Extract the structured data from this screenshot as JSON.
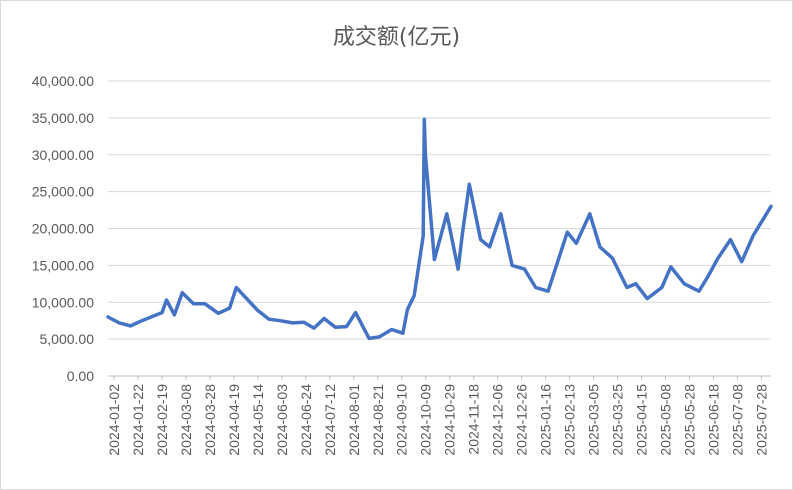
{
  "chart_data": {
    "type": "line",
    "title": "成交额(亿元)",
    "xlabel": "",
    "ylabel": "",
    "ylim": [
      0,
      40000
    ],
    "yticks": [
      "0.00",
      "5,000.00",
      "10,000.00",
      "15,000.00",
      "20,000.00",
      "25,000.00",
      "30,000.00",
      "35,000.00",
      "40,000.00"
    ],
    "ytick_values": [
      0,
      5000,
      10000,
      15000,
      20000,
      25000,
      30000,
      35000,
      40000
    ],
    "grid": true,
    "legend": "none",
    "color": "#4472c4",
    "xtick_labels": [
      "2024-01-02",
      "2024-01-22",
      "2024-02-19",
      "2024-03-08",
      "2024-03-28",
      "2024-04-19",
      "2024-05-14",
      "2024-06-03",
      "2024-06-24",
      "2024-07-12",
      "2024-08-01",
      "2024-08-21",
      "2024-09-10",
      "2024-10-09",
      "2024-10-29",
      "2024-11-18",
      "2024-12-06",
      "2024-12-26",
      "2025-01-16",
      "2025-02-13",
      "2025-03-05",
      "2025-03-25",
      "2025-04-15",
      "2025-05-08",
      "2025-05-28",
      "2025-06-18",
      "2025-07-08",
      "2025-07-28"
    ],
    "x": [
      "2024-01-02",
      "2024-01-12",
      "2024-01-22",
      "2024-02-01",
      "2024-02-19",
      "2024-02-23",
      "2024-03-01",
      "2024-03-08",
      "2024-03-18",
      "2024-03-28",
      "2024-04-09",
      "2024-04-19",
      "2024-04-25",
      "2024-05-14",
      "2024-05-24",
      "2024-06-03",
      "2024-06-14",
      "2024-06-24",
      "2024-07-03",
      "2024-07-12",
      "2024-07-22",
      "2024-08-01",
      "2024-08-09",
      "2024-08-21",
      "2024-08-30",
      "2024-09-10",
      "2024-09-20",
      "2024-09-24",
      "2024-09-30",
      "2024-10-08",
      "2024-10-09",
      "2024-10-10",
      "2024-10-18",
      "2024-10-29",
      "2024-11-08",
      "2024-11-12",
      "2024-11-18",
      "2024-11-28",
      "2024-12-06",
      "2024-12-16",
      "2024-12-26",
      "2025-01-06",
      "2025-01-16",
      "2025-01-27",
      "2025-02-13",
      "2025-02-21",
      "2025-03-05",
      "2025-03-14",
      "2025-03-25",
      "2025-04-07",
      "2025-04-15",
      "2025-04-25",
      "2025-05-08",
      "2025-05-16",
      "2025-05-28",
      "2025-06-10",
      "2025-06-18",
      "2025-06-27",
      "2025-07-08",
      "2025-07-18",
      "2025-07-28",
      "2025-08-13"
    ],
    "values": [
      8000,
      7200,
      6800,
      7500,
      8600,
      10300,
      8300,
      11300,
      9800,
      9800,
      8500,
      9200,
      12000,
      8900,
      7700,
      7500,
      7200,
      7300,
      6500,
      7800,
      6600,
      6700,
      8600,
      5100,
      5300,
      6300,
      5800,
      9000,
      10900,
      19000,
      34800,
      30000,
      15800,
      22000,
      14500,
      19500,
      26000,
      18500,
      17500,
      22000,
      15000,
      14500,
      12000,
      11500,
      19500,
      18000,
      22000,
      17500,
      16000,
      12000,
      12500,
      10500,
      12000,
      14800,
      12500,
      11500,
      13500,
      16000,
      18500,
      15500,
      19000,
      23000
    ]
  }
}
